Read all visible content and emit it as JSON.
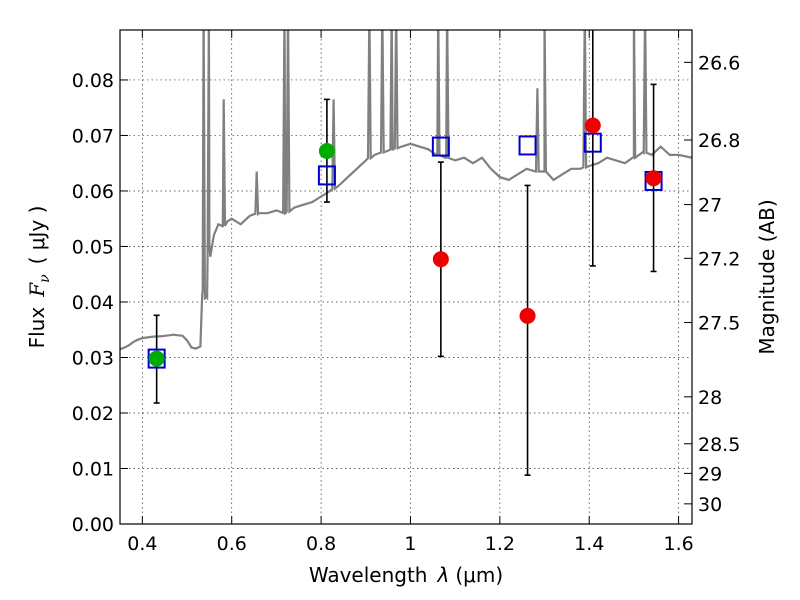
{
  "chart_data": {
    "type": "scatter",
    "xlabel_prefix": "Wavelength",
    "xlabel_symbol": "λ",
    "xlabel_unit": "(μm)",
    "ylabel_prefix": "Flux",
    "ylabel_symbol": "F",
    "ylabel_subscript": "ν",
    "ylabel_unit": "( μJy )",
    "y2label": "Magnitude (AB)",
    "xlim": [
      0.35,
      1.63
    ],
    "ylim": [
      0.0,
      0.089
    ],
    "xticks": [
      0.4,
      0.6,
      0.8,
      1.0,
      1.2,
      1.4,
      1.6
    ],
    "xtick_labels": [
      "0.4",
      "0.6",
      "0.8",
      "1",
      "1.2",
      "1.4",
      "1.6"
    ],
    "yticks": [
      0.0,
      0.01,
      0.02,
      0.03,
      0.04,
      0.05,
      0.06,
      0.07,
      0.08
    ],
    "ytick_labels": [
      "0.00",
      "0.01",
      "0.02",
      "0.03",
      "0.04",
      "0.05",
      "0.06",
      "0.07",
      "0.08"
    ],
    "mag_ticks": [
      26.6,
      26.8,
      27,
      27.2,
      27.5,
      28,
      28.5,
      29,
      30
    ],
    "mag_tick_labels": [
      "26.6",
      "26.8",
      "27",
      "27.2",
      "27.5",
      "28",
      "28.5",
      "29",
      "30"
    ],
    "grid": true,
    "colors": {
      "model": "#808080",
      "green_points": "#00aa00",
      "red_points": "#ee0000",
      "model_squares": "#0000cc",
      "errorbars": "#000000"
    },
    "series": [
      {
        "name": "Model spectrum",
        "kind": "line",
        "x": [
          0.35,
          0.36,
          0.37,
          0.38,
          0.39,
          0.4,
          0.41,
          0.42,
          0.43,
          0.44,
          0.45,
          0.46,
          0.47,
          0.48,
          0.49,
          0.5,
          0.51,
          0.52,
          0.53,
          0.535,
          0.54,
          0.545,
          0.55,
          0.56,
          0.57,
          0.58,
          0.59,
          0.6,
          0.62,
          0.64,
          0.66,
          0.68,
          0.7,
          0.72,
          0.74,
          0.76,
          0.78,
          0.8,
          0.82,
          0.84,
          0.86,
          0.88,
          0.9,
          0.92,
          0.94,
          0.96,
          0.98,
          1.0,
          1.02,
          1.04,
          1.06,
          1.08,
          1.1,
          1.12,
          1.14,
          1.16,
          1.18,
          1.2,
          1.22,
          1.24,
          1.26,
          1.28,
          1.3,
          1.32,
          1.34,
          1.36,
          1.38,
          1.4,
          1.42,
          1.44,
          1.46,
          1.48,
          1.5,
          1.52,
          1.54,
          1.56,
          1.58,
          1.6,
          1.63
        ],
        "y": [
          0.0315,
          0.0318,
          0.0322,
          0.0328,
          0.0332,
          0.0335,
          0.0336,
          0.0337,
          0.0338,
          0.0338,
          0.0339,
          0.034,
          0.0341,
          0.034,
          0.0339,
          0.0331,
          0.0318,
          0.0316,
          0.032,
          0.042,
          0.0404,
          0.0408,
          0.05,
          0.052,
          0.054,
          0.0535,
          0.0545,
          0.055,
          0.054,
          0.0555,
          0.056,
          0.056,
          0.0565,
          0.056,
          0.057,
          0.0575,
          0.058,
          0.059,
          0.06,
          0.061,
          0.0625,
          0.064,
          0.0655,
          0.0665,
          0.067,
          0.0675,
          0.068,
          0.0685,
          0.068,
          0.0675,
          0.0665,
          0.066,
          0.0655,
          0.066,
          0.065,
          0.066,
          0.064,
          0.0625,
          0.062,
          0.063,
          0.064,
          0.0635,
          0.0635,
          0.062,
          0.063,
          0.064,
          0.064,
          0.0645,
          0.065,
          0.066,
          0.0655,
          0.065,
          0.066,
          0.067,
          0.0665,
          0.068,
          0.0665,
          0.0665,
          0.066
        ],
        "emission_lines": [
          {
            "x": 0.537,
            "peak": 0.089
          },
          {
            "x": 0.549,
            "peak": 0.089
          },
          {
            "x": 0.582,
            "peak": 0.0725
          },
          {
            "x": 0.656,
            "peak": 0.0595
          },
          {
            "x": 0.718,
            "peak": 0.089
          },
          {
            "x": 0.726,
            "peak": 0.089
          },
          {
            "x": 0.828,
            "peak": 0.0725
          },
          {
            "x": 0.908,
            "peak": 0.089
          },
          {
            "x": 0.937,
            "peak": 0.089
          },
          {
            "x": 0.958,
            "peak": 0.089
          },
          {
            "x": 0.968,
            "peak": 0.089
          },
          {
            "x": 1.062,
            "peak": 0.089
          },
          {
            "x": 1.082,
            "peak": 0.089
          },
          {
            "x": 1.284,
            "peak": 0.0745
          },
          {
            "x": 1.3,
            "peak": 0.089
          },
          {
            "x": 1.39,
            "peak": 0.0885
          },
          {
            "x": 1.5,
            "peak": 0.089
          },
          {
            "x": 1.525,
            "peak": 0.089
          }
        ]
      },
      {
        "name": "Observed (green)",
        "kind": "errorbar",
        "x": [
          0.432,
          0.813
        ],
        "y": [
          0.0298,
          0.0672
        ],
        "yerr_low": [
          0.0218,
          0.058
        ],
        "yerr_high": [
          0.0376,
          0.0765
        ]
      },
      {
        "name": "Observed (red)",
        "kind": "errorbar",
        "x": [
          1.068,
          1.262,
          1.408,
          1.544
        ],
        "y": [
          0.0477,
          0.0375,
          0.0718,
          0.0623
        ],
        "yerr_low": [
          0.0302,
          0.0088,
          0.0465,
          0.0455
        ],
        "yerr_high": [
          0.0652,
          0.061,
          0.089,
          0.0792
        ]
      },
      {
        "name": "Model photometry",
        "kind": "open_square",
        "x": [
          0.432,
          0.813,
          1.068,
          1.262,
          1.408,
          1.544
        ],
        "y": [
          0.0298,
          0.0628,
          0.068,
          0.0682,
          0.0687,
          0.0618
        ]
      }
    ]
  }
}
